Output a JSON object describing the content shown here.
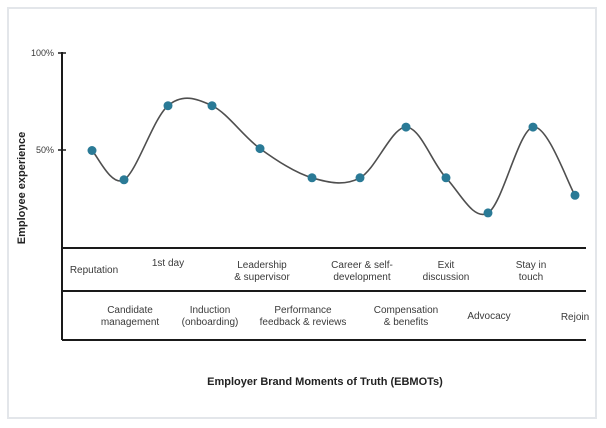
{
  "chart_data": {
    "type": "line",
    "title": "",
    "xlabel": "Employer Brand Moments of Truth (EBMOTs)",
    "ylabel": "Employee experience",
    "ylim": [
      0,
      100
    ],
    "yticks": [
      "100%",
      "50%"
    ],
    "grid": false,
    "series": [
      {
        "categories": [
          "Reputation",
          "Candidate management",
          "1st day",
          "Induction (onboarding)",
          "Leadership & supervisor",
          "Performance feedback & reviews",
          "Career & self-development",
          "Compensation & benefits",
          "Exit discussion",
          "Advocacy",
          "Stay in touch",
          "Rejoin"
        ],
        "values": [
          50,
          35,
          73,
          73,
          51,
          36,
          36,
          62,
          36,
          18,
          62,
          27
        ]
      }
    ],
    "labels_row1": [
      {
        "lines": [
          "Reputation"
        ]
      },
      {
        "lines": [
          "1st day"
        ]
      },
      {
        "lines": [
          "Leadership",
          "& supervisor"
        ]
      },
      {
        "lines": [
          "Career & self-",
          "development"
        ]
      },
      {
        "lines": [
          "Exit",
          "discussion"
        ]
      },
      {
        "lines": [
          "Stay in",
          "touch"
        ]
      }
    ],
    "labels_row2": [
      {
        "lines": [
          "Candidate",
          "management"
        ]
      },
      {
        "lines": [
          "Induction",
          "(onboarding)"
        ]
      },
      {
        "lines": [
          "Performance",
          "feedback & reviews"
        ]
      },
      {
        "lines": [
          "Compensation",
          "& benefits"
        ]
      },
      {
        "lines": [
          "Advocacy"
        ]
      },
      {
        "lines": [
          "Rejoin"
        ]
      }
    ],
    "colors": {
      "line": "#4f4f4f",
      "marker": "#2a7a96",
      "axis": "#1a1a1a"
    }
  }
}
